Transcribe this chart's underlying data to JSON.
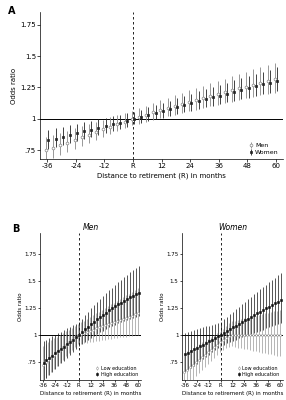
{
  "xticks": [
    -36,
    -24,
    -12,
    0,
    12,
    24,
    36,
    48,
    60
  ],
  "xticklabels": [
    "-36",
    "-24",
    "-12",
    "R",
    "12",
    "24",
    "36",
    "48",
    "60"
  ],
  "yticks_A": [
    0.75,
    1.0,
    1.25,
    1.5,
    1.75
  ],
  "yticks_B": [
    0.75,
    1.0,
    1.25,
    1.5,
    1.75
  ],
  "ylabel": "Odds ratio",
  "xlabel": "Distance to retirement (R) in months",
  "vline_x": 0,
  "hline_y": 1.0,
  "color_men": "#888888",
  "color_women": "#222222",
  "color_low": "#999999",
  "color_high": "#111111",
  "panel_A_men_label": "Men",
  "panel_A_women_label": "Women",
  "panel_B_men_title": "Men",
  "panel_B_women_title": "Women",
  "panel_B_low_label": "Low education",
  "panel_B_high_label": "High education",
  "step": 3,
  "xlim": [
    -39,
    63
  ],
  "ylim_A": [
    0.68,
    1.85
  ],
  "ylim_B": [
    0.58,
    1.95
  ],
  "ci_half_A_men": 0.065,
  "ci_half_A_women": 0.055,
  "ci_half_B_low": 0.1,
  "ci_half_B_high": 0.12
}
